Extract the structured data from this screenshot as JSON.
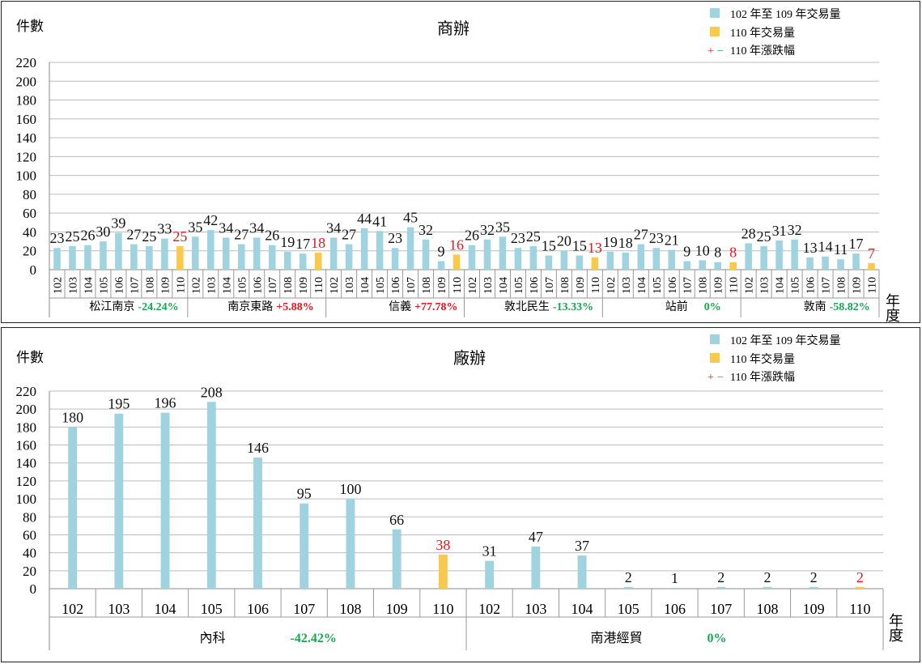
{
  "legend": {
    "base_label": "102 年至 109 年交易量",
    "current_label": "110 年交易量",
    "change_label": "110 年漲跌幅",
    "plus": "+",
    "minus": "−"
  },
  "colors": {
    "base": "#9fd3df",
    "current": "#f9c94e",
    "up": "#e8141b",
    "down": "#16a84c",
    "grid": "#bdbdbd"
  },
  "chart_data": [
    {
      "type": "bar",
      "title": "商辦",
      "ylabel": "件數",
      "xlabel": "年度",
      "ylim": [
        0,
        220
      ],
      "yticks": [
        0,
        20,
        40,
        60,
        80,
        100,
        120,
        140,
        160,
        180,
        200,
        220
      ],
      "grid": true,
      "legend_position": "top-right",
      "years": [
        "102",
        "103",
        "104",
        "105",
        "106",
        "107",
        "108",
        "109",
        "110"
      ],
      "groups": [
        {
          "name": "松江南京",
          "change": "-24.24%",
          "dir": "down",
          "values": [
            23,
            25,
            26,
            30,
            39,
            27,
            25,
            33,
            25
          ]
        },
        {
          "name": "南京東路",
          "change": "+5.88%",
          "dir": "up",
          "values": [
            35,
            42,
            34,
            27,
            34,
            26,
            19,
            17,
            18
          ]
        },
        {
          "name": "信義",
          "change": "+77.78%",
          "dir": "up",
          "values": [
            34,
            27,
            44,
            41,
            23,
            45,
            32,
            9,
            16
          ]
        },
        {
          "name": "敦北民生",
          "change": "-13.33%",
          "dir": "down",
          "values": [
            26,
            32,
            35,
            23,
            25,
            15,
            20,
            15,
            13
          ]
        },
        {
          "name": "站前",
          "change": "0%",
          "dir": "down",
          "values": [
            19,
            18,
            27,
            23,
            21,
            9,
            10,
            8,
            8
          ]
        },
        {
          "name": "敦南",
          "change": "-58.82%",
          "dir": "down",
          "values": [
            28,
            25,
            31,
            32,
            13,
            14,
            11,
            17,
            7
          ]
        }
      ]
    },
    {
      "type": "bar",
      "title": "廠辦",
      "ylabel": "件數",
      "xlabel": "年度",
      "ylim": [
        0,
        220
      ],
      "yticks": [
        0,
        20,
        40,
        60,
        80,
        100,
        120,
        140,
        160,
        180,
        200,
        220
      ],
      "grid": true,
      "legend_position": "top-right",
      "years": [
        "102",
        "103",
        "104",
        "105",
        "106",
        "107",
        "108",
        "109",
        "110"
      ],
      "groups": [
        {
          "name": "內科",
          "change": "-42.42%",
          "dir": "down",
          "values": [
            180,
            195,
            196,
            208,
            146,
            95,
            100,
            66,
            38
          ]
        },
        {
          "name": "南港經貿",
          "change": "0%",
          "dir": "down",
          "values": [
            31,
            47,
            37,
            2,
            1,
            2,
            2,
            2,
            2
          ]
        }
      ]
    }
  ]
}
